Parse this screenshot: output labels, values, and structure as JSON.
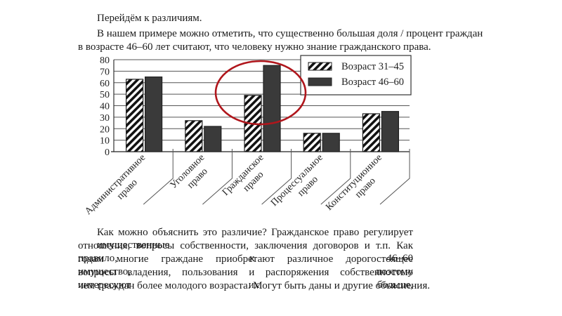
{
  "document": {
    "intro_heading": "Перейдём к различиям.",
    "intro_lines": [
      "В нашем примере можно отметить, что существенно большая доля / процент граждан",
      "в возрасте 46–60 лет считают, что человеку нужно знание гражданского права."
    ],
    "conclusion_lines": [
      "Как можно объяснить это различие? Гражданское право регулирует имущественные",
      "отношения, вопросы собственности, заключения договоров и т.п. Как правило, к 46–60",
      "годам многие граждане приобретают различное дорогостоящее имущество, поэтому",
      "вопросы владения, пользования и распоряжения собственностью интересуют их больше,",
      "чем граждан более молодого возраста. Могут быть даны и другие объяснения."
    ]
  },
  "highlight": {
    "shape": "ellipse",
    "color": "#b0161c",
    "target_category": "Гражданское право"
  },
  "chart_data": {
    "type": "bar",
    "title": "",
    "xlabel": "",
    "ylabel": "",
    "ylim": [
      0,
      80
    ],
    "yticks": [
      0,
      10,
      20,
      30,
      40,
      50,
      60,
      70,
      80
    ],
    "grid": true,
    "legend_position": "upper right (inside)",
    "categories": [
      [
        "Административное",
        "право"
      ],
      [
        "Уголовное",
        "право"
      ],
      [
        "Гражданское",
        "право"
      ],
      [
        "Процессуальное",
        "право"
      ],
      [
        "Конституционное",
        "право"
      ]
    ],
    "category_names": [
      "Административное право",
      "Уголовное право",
      "Гражданское право",
      "Процессуальное право",
      "Конституционное право"
    ],
    "series": [
      {
        "name": "Возраст 31–45",
        "pattern": "diagonal-hatch",
        "values": [
          63,
          27,
          49,
          16,
          33
        ]
      },
      {
        "name": "Возраст 46–60",
        "pattern": "solid",
        "color": "#3a3a3a",
        "values": [
          65,
          22,
          75,
          16,
          35
        ]
      }
    ]
  }
}
